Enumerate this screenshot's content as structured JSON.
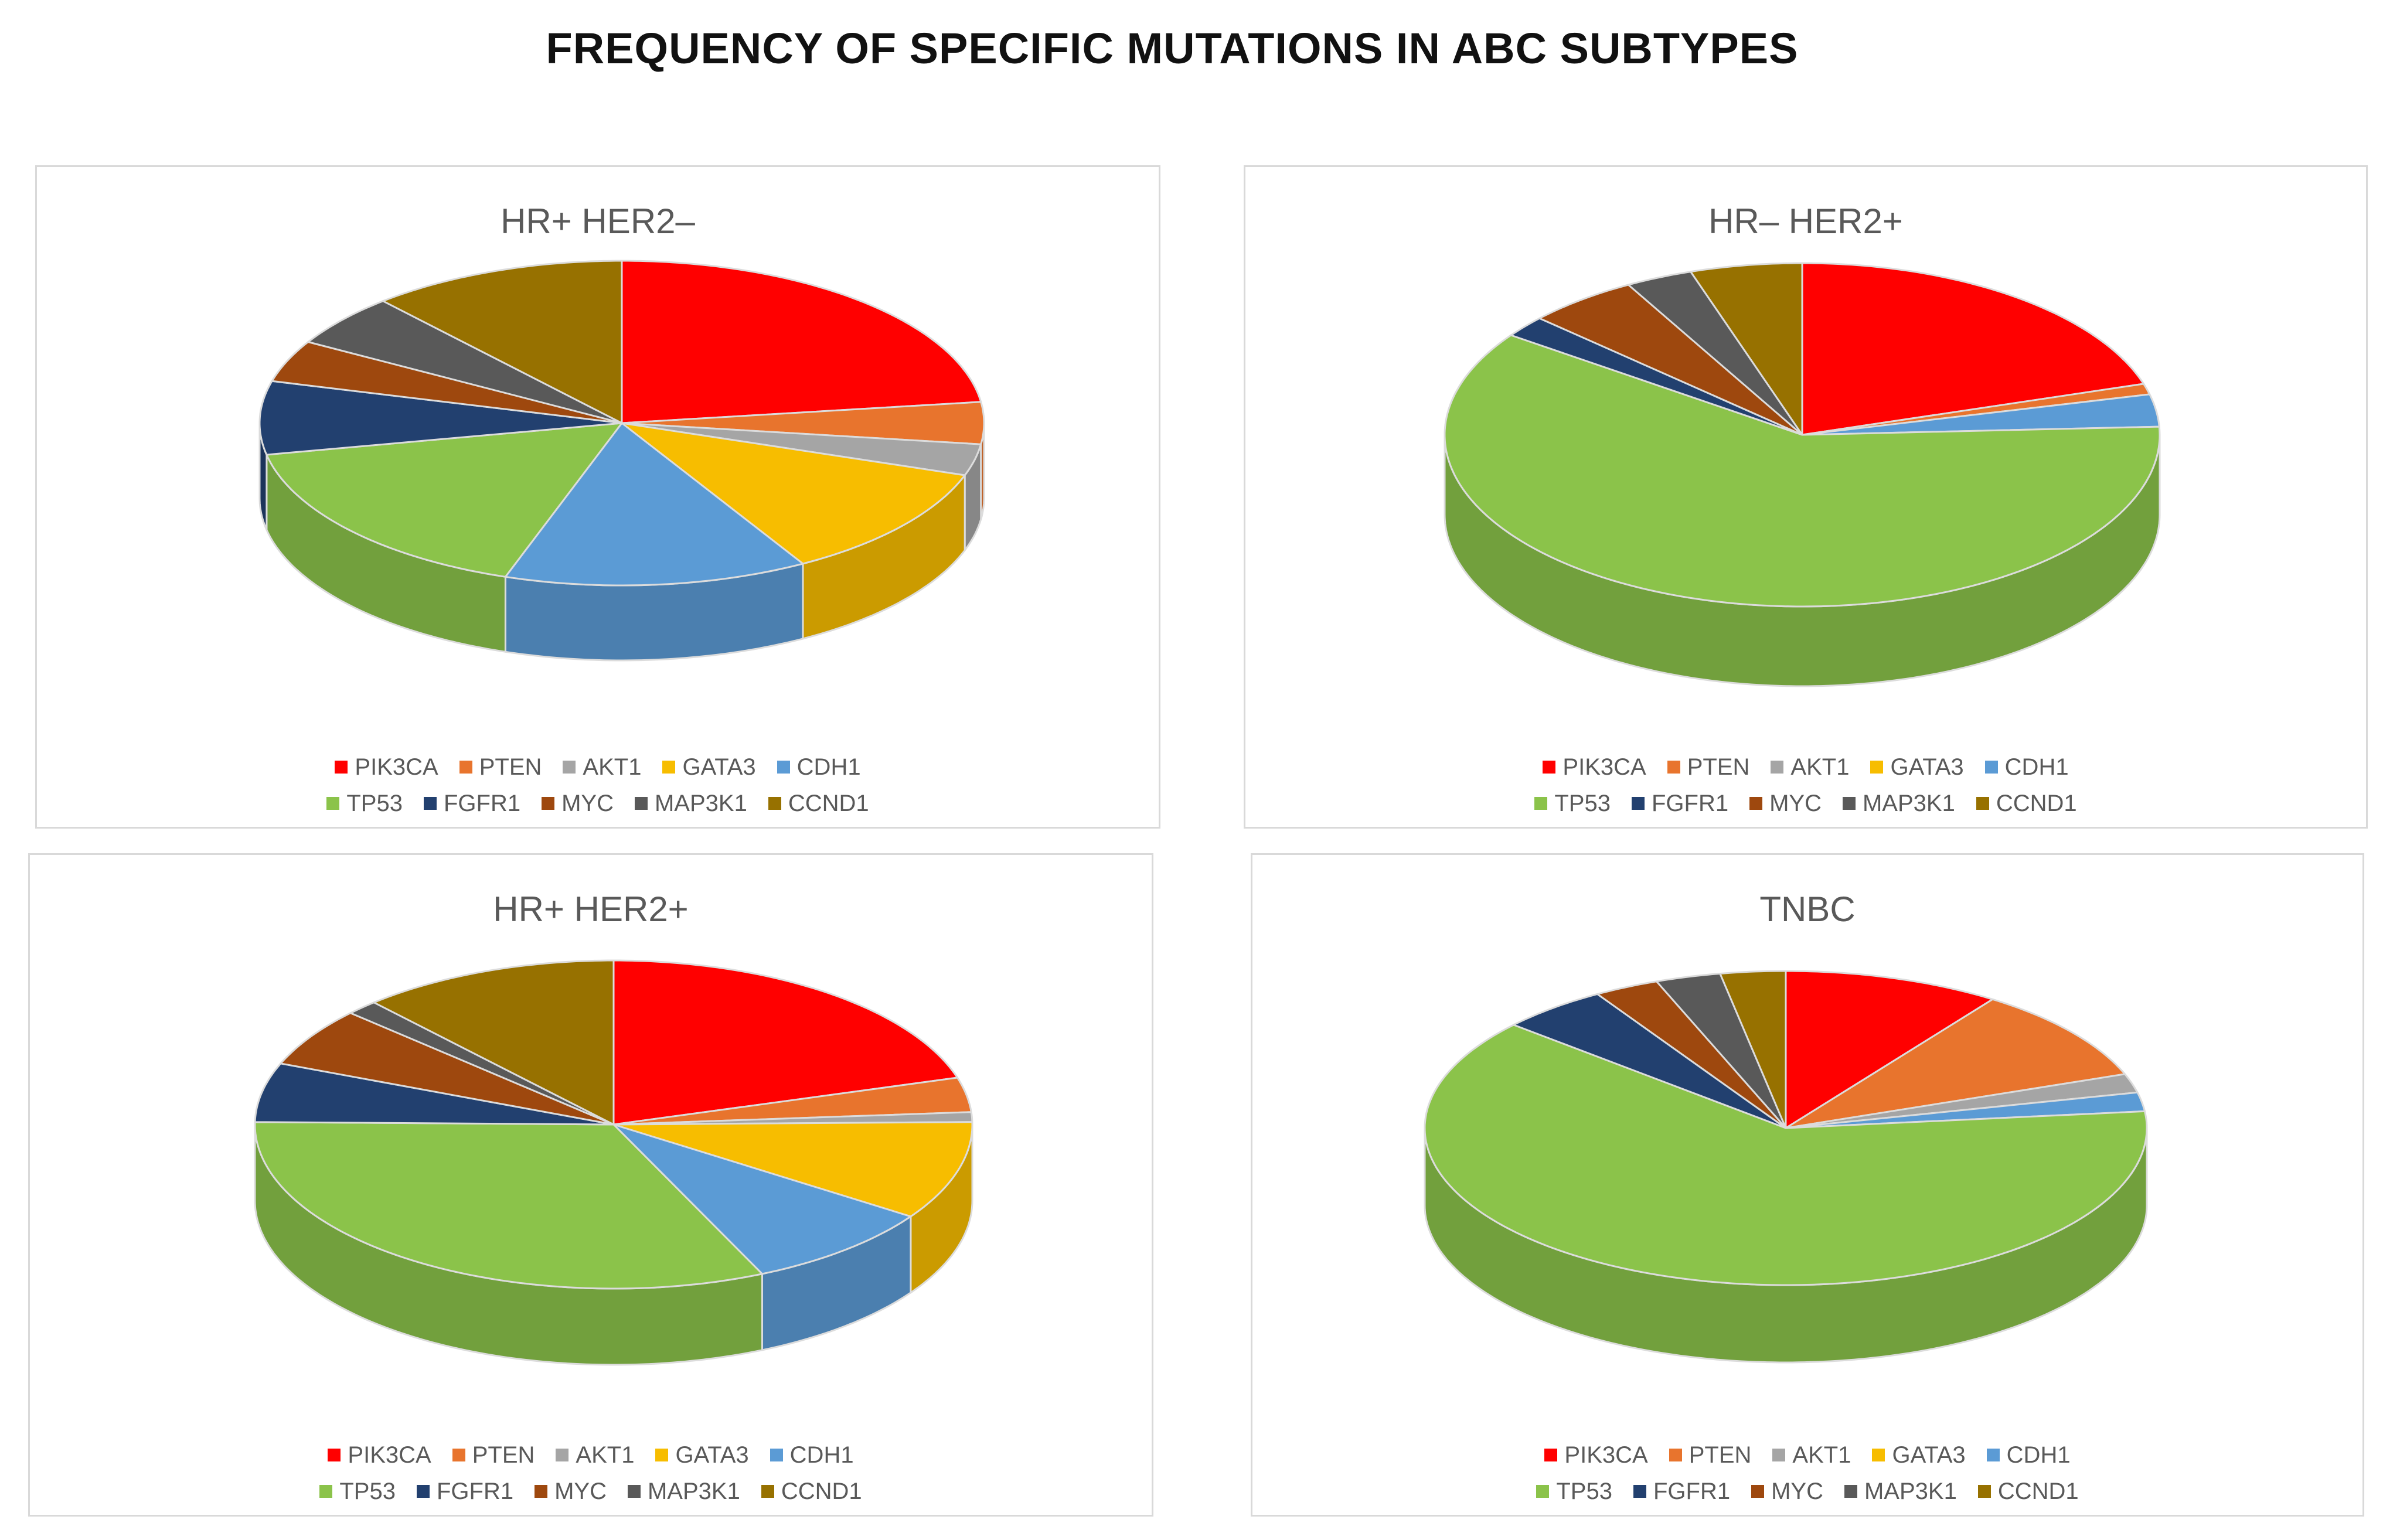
{
  "title": "FREQUENCY OF SPECIFIC MUTATIONS IN ABC SUBTYPES",
  "legend_rows": [
    [
      "PIK3CA",
      "PTEN",
      "AKT1",
      "GATA3",
      "CDH1"
    ],
    [
      "TP53",
      "FGFR1",
      "MYC",
      "MAP3K1",
      "CCND1"
    ]
  ],
  "colors": {
    "PIK3CA": "#ff0000",
    "PTEN": "#e8742d",
    "AKT1": "#a5a5a5",
    "GATA3": "#f7bd00",
    "CDH1": "#5b9bd5",
    "TP53": "#8bc34a",
    "FGFR1": "#22406f",
    "MYC": "#9e480e",
    "MAP3K1": "#595959",
    "CCND1": "#977100"
  },
  "chart_data": [
    {
      "type": "pie",
      "style": "3d",
      "title": "HR+ HER2–",
      "categories": [
        "PIK3CA",
        "PTEN",
        "AKT1",
        "GATA3",
        "CDH1",
        "TP53",
        "FGFR1",
        "MYC",
        "MAP3K1",
        "CCND1"
      ],
      "values": [
        22,
        4,
        3,
        11,
        13,
        16,
        7,
        4,
        5,
        11
      ],
      "legend": "bottom"
    },
    {
      "type": "pie",
      "style": "3d",
      "title": "HR– HER2+",
      "categories": [
        "PIK3CA",
        "PTEN",
        "AKT1",
        "GATA3",
        "CDH1",
        "TP53",
        "FGFR1",
        "MYC",
        "MAP3K1",
        "CCND1"
      ],
      "values": [
        20,
        1,
        0,
        0,
        3,
        60,
        2,
        5,
        3,
        5
      ],
      "legend": "bottom"
    },
    {
      "type": "pie",
      "style": "3d",
      "title": "HR+ HER2+",
      "categories": [
        "PIK3CA",
        "PTEN",
        "AKT1",
        "GATA3",
        "CDH1",
        "TP53",
        "FGFR1",
        "MYC",
        "MAP3K1",
        "CCND1"
      ],
      "values": [
        21,
        3.5,
        1,
        10,
        9,
        33,
        6,
        6,
        1.5,
        12
      ],
      "legend": "bottom"
    },
    {
      "type": "pie",
      "style": "3d",
      "title": "TNBC",
      "categories": [
        "PIK3CA",
        "PTEN",
        "AKT1",
        "GATA3",
        "CDH1",
        "TP53",
        "FGFR1",
        "MYC",
        "MAP3K1",
        "CCND1"
      ],
      "values": [
        10,
        10,
        2,
        0,
        2,
        65,
        5,
        3,
        3,
        3
      ],
      "legend": "bottom"
    }
  ]
}
